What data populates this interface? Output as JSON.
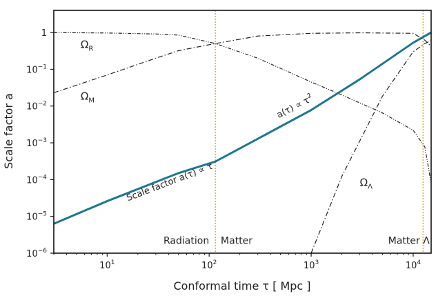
{
  "chart_data": {
    "type": "line",
    "title": "",
    "xlabel": "Conformal time τ  [ Mpc ]",
    "ylabel": "Scale factor  a",
    "xscale": "log",
    "yscale": "log",
    "xlim": [
      3,
      15000
    ],
    "ylim": [
      1e-06,
      4
    ],
    "grid": false,
    "xticks": [
      {
        "value": 10,
        "base": "10",
        "exp": "1"
      },
      {
        "value": 100,
        "base": "10",
        "exp": "2"
      },
      {
        "value": 1000,
        "base": "10",
        "exp": "3"
      },
      {
        "value": 10000,
        "base": "10",
        "exp": "4"
      }
    ],
    "yticks": [
      {
        "value": 1,
        "base": "1",
        "exp": ""
      },
      {
        "value": 0.1,
        "base": "10",
        "exp": "−1"
      },
      {
        "value": 0.01,
        "base": "10",
        "exp": "−2"
      },
      {
        "value": 0.001,
        "base": "10",
        "exp": "−3"
      },
      {
        "value": 0.0001,
        "base": "10",
        "exp": "−4"
      },
      {
        "value": 1e-05,
        "base": "10",
        "exp": "−5"
      },
      {
        "value": 1e-06,
        "base": "10",
        "exp": "−6"
      }
    ],
    "series": [
      {
        "id": "scale-factor",
        "color": "#1f7690",
        "style": "solid",
        "x": [
          3,
          10,
          50,
          115,
          300,
          1000,
          3000,
          10000,
          15000
        ],
        "y": [
          6.3e-06,
          2.6e-05,
          0.00015,
          0.00031,
          0.00129,
          0.00779,
          0.0534,
          0.527,
          1.0
        ]
      },
      {
        "id": "omega-r",
        "color": "#222222",
        "style": "dash-dot-dot",
        "x": [
          3,
          10,
          30,
          50,
          115,
          300,
          1000,
          2000,
          5000,
          10000,
          13000,
          15000
        ],
        "y": [
          0.995,
          0.97,
          0.91,
          0.85,
          0.5,
          0.2,
          0.045,
          0.02,
          0.0065,
          0.0022,
          0.00078,
          8e-05
        ]
      },
      {
        "id": "omega-m",
        "color": "#222222",
        "style": "dash-dot",
        "x": [
          3,
          10,
          30,
          50,
          115,
          300,
          1000,
          3000,
          10000,
          13000,
          15000
        ],
        "y": [
          0.023,
          0.07,
          0.2,
          0.32,
          0.5,
          0.8,
          0.95,
          0.98,
          0.95,
          0.62,
          0.42
        ]
      },
      {
        "id": "omega-lambda",
        "color": "#222222",
        "style": "dash-dot",
        "x": [
          1000,
          2000,
          5000,
          10000,
          13000,
          15000
        ],
        "y": [
          1e-06,
          0.000123,
          0.0185,
          0.3,
          0.5,
          0.6
        ]
      }
    ],
    "vlines": [
      {
        "x": 115,
        "color": "#f0a020"
      },
      {
        "x": 12500,
        "color": "#f0a020"
      }
    ],
    "annotations": [
      {
        "id": "omega-r-label",
        "greek": "Ω",
        "sub": "R",
        "x": 5.5,
        "y": 0.38
      },
      {
        "id": "omega-m-label",
        "greek": "Ω",
        "sub": "M",
        "x": 5.5,
        "y": 0.0148
      },
      {
        "id": "omega-lambda-label",
        "greek": "Ω",
        "sub": "Λ",
        "x": 3000,
        "y": 6.8e-05
      },
      {
        "id": "radiation-era-label",
        "text": "Radiation",
        "x": 100,
        "y": 1.8e-06,
        "anchor": "end"
      },
      {
        "id": "matter-era-label",
        "text": "Matter",
        "x": 130,
        "y": 1.8e-06,
        "anchor": "start"
      },
      {
        "id": "matter-lambda-era-label",
        "text": "Matter Λ",
        "x": 14500,
        "y": 1.8e-06,
        "anchor": "end"
      },
      {
        "id": "radiation-fit-label",
        "text": "Scale factor  a(τ) ∝ τ",
        "sup": "",
        "x": 16,
        "y": 2.6e-05,
        "angle": -21
      },
      {
        "id": "matter-fit-label",
        "text": "a(τ) ∝ τ",
        "sup": "2",
        "x": 480,
        "y": 0.0047,
        "angle": -27
      }
    ]
  }
}
